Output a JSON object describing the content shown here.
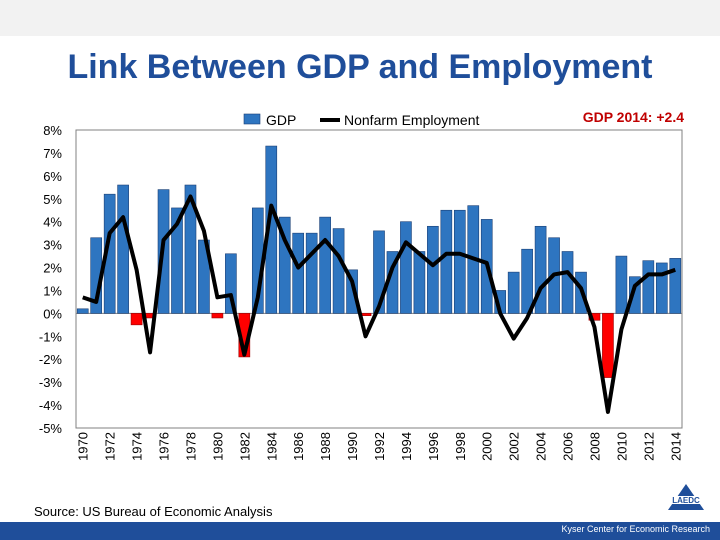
{
  "slide": {
    "title": "Link Between GDP and Employment",
    "source": "Source: US Bureau of Economic Analysis",
    "footer": "Kyser Center for Economic Research",
    "logo_text": "LAEDC"
  },
  "colors": {
    "title": "#1f4e9a",
    "positive_bar": "#2e75c0",
    "negative_bar": "#ff0000",
    "line": "#000000",
    "annotation": "#c00000",
    "footer_bar": "#1f4e9a"
  },
  "chart_data": {
    "type": "bar",
    "legend": [
      "GDP",
      "Nonfarm Employment"
    ],
    "annotation": "GDP 2014: +2.4",
    "categories": [
      1970,
      1971,
      1972,
      1973,
      1974,
      1975,
      1976,
      1977,
      1978,
      1979,
      1980,
      1981,
      1982,
      1983,
      1984,
      1985,
      1986,
      1987,
      1988,
      1989,
      1990,
      1991,
      1992,
      1993,
      1994,
      1995,
      1996,
      1997,
      1998,
      1999,
      2000,
      2001,
      2002,
      2003,
      2004,
      2005,
      2006,
      2007,
      2008,
      2009,
      2010,
      2011,
      2012,
      2013,
      2014
    ],
    "x_tick_labels": [
      "1970",
      "1972",
      "1974",
      "1976",
      "1978",
      "1980",
      "1982",
      "1984",
      "1986",
      "1988",
      "1990",
      "1992",
      "1994",
      "1996",
      "1998",
      "2000",
      "2002",
      "2004",
      "2006",
      "2008",
      "2010",
      "2012",
      "2014"
    ],
    "series": [
      {
        "name": "GDP",
        "type": "bar",
        "values": [
          0.2,
          3.3,
          5.2,
          5.6,
          -0.5,
          -0.2,
          5.4,
          4.6,
          5.6,
          3.2,
          -0.2,
          2.6,
          -1.9,
          4.6,
          7.3,
          4.2,
          3.5,
          3.5,
          4.2,
          3.7,
          1.9,
          -0.1,
          3.6,
          2.7,
          4.0,
          2.7,
          3.8,
          4.5,
          4.5,
          4.7,
          4.1,
          1.0,
          1.8,
          2.8,
          3.8,
          3.3,
          2.7,
          1.8,
          -0.3,
          -2.8,
          2.5,
          1.6,
          2.3,
          2.2,
          2.4
        ]
      },
      {
        "name": "Nonfarm Employment",
        "type": "line",
        "values": [
          0.7,
          0.5,
          3.5,
          4.2,
          1.9,
          -1.7,
          3.2,
          3.9,
          5.1,
          3.6,
          0.7,
          0.8,
          -1.8,
          0.7,
          4.7,
          3.2,
          2.0,
          2.6,
          3.2,
          2.5,
          1.4,
          -1.0,
          0.3,
          2.0,
          3.1,
          2.6,
          2.1,
          2.6,
          2.6,
          2.4,
          2.2,
          0.0,
          -1.1,
          -0.2,
          1.1,
          1.7,
          1.8,
          1.1,
          -0.6,
          -4.3,
          -0.7,
          1.2,
          1.7,
          1.7,
          1.9
        ]
      }
    ],
    "y_tick_labels": [
      "8%",
      "7%",
      "6%",
      "5%",
      "4%",
      "3%",
      "2%",
      "1%",
      "0%",
      "-1%",
      "-2%",
      "-3%",
      "-4%",
      "-5%"
    ],
    "ylim": [
      -5,
      8
    ],
    "ylabel": "",
    "xlabel": ""
  }
}
